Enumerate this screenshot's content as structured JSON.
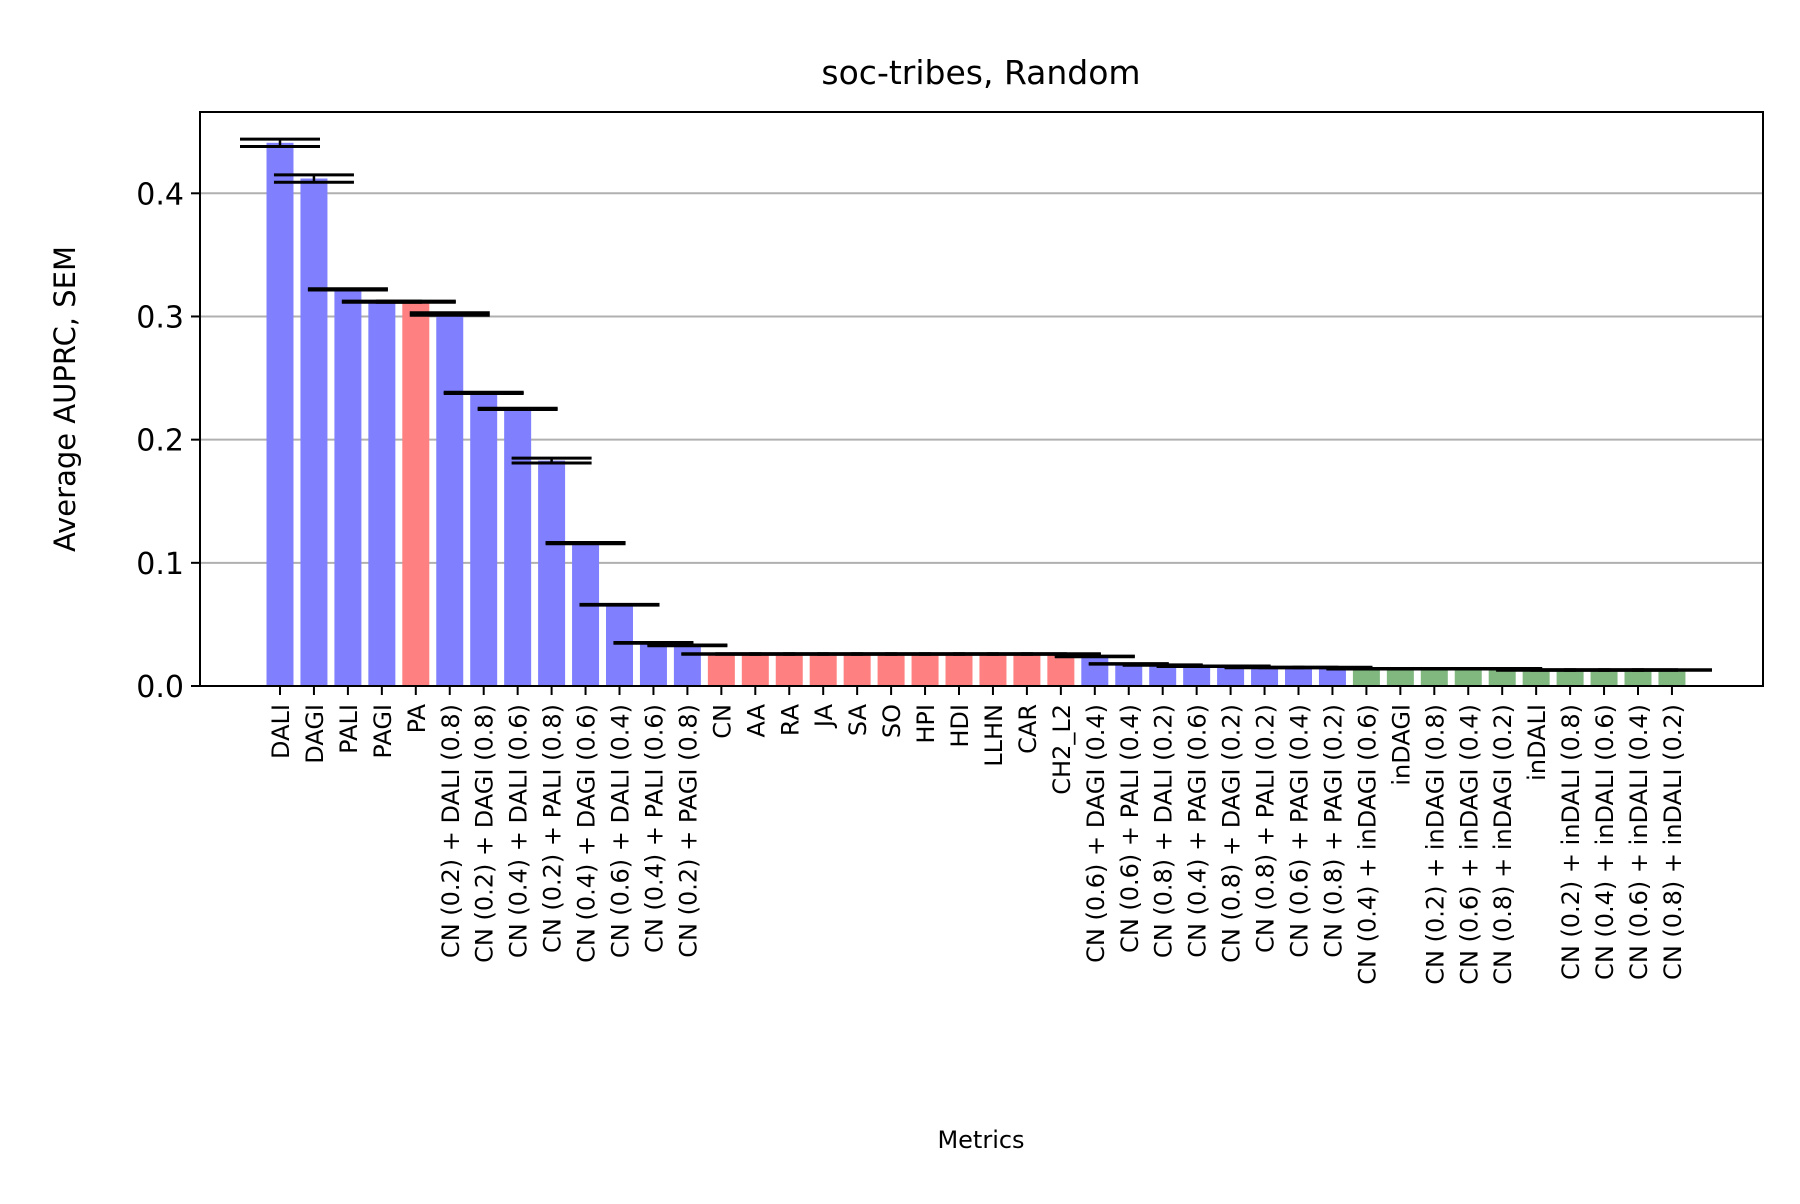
{
  "chart_data": {
    "type": "bar",
    "title": "soc-tribes, Random",
    "xlabel": "Metrics",
    "ylabel": "Average AUPRC, SEM",
    "ylim": [
      0,
      0.466
    ],
    "yticks": [
      0.0,
      0.1,
      0.2,
      0.3,
      0.4
    ],
    "ytick_labels": [
      "0.0",
      "0.1",
      "0.2",
      "0.3",
      "0.4"
    ],
    "grid": "y",
    "colors": {
      "blue": "#8080ff",
      "red": "#ff8080",
      "green": "#80b880"
    },
    "categories": [
      "DALI",
      "DAGI",
      "PALI",
      "PAGI",
      "PA",
      "CN (0.2) + DALI (0.8)",
      "CN (0.2) + DAGI (0.8)",
      "CN (0.4) + DALI (0.6)",
      "CN (0.2) + PALI (0.8)",
      "CN (0.4) + DAGI (0.6)",
      "CN (0.6) + DALI (0.4)",
      "CN (0.4) + PALI (0.6)",
      "CN (0.2) + PAGI (0.8)",
      "CN",
      "AA",
      "RA",
      "JA",
      "SA",
      "SO",
      "HPI",
      "HDI",
      "LLHN",
      "CAR",
      "CH2_L2",
      "CN (0.6) + DAGI (0.4)",
      "CN (0.6) + PALI (0.4)",
      "CN (0.8) + DALI (0.2)",
      "CN (0.4) + PAGI (0.6)",
      "CN (0.8) + DAGI (0.2)",
      "CN (0.8) + PALI (0.2)",
      "CN (0.6) + PAGI (0.4)",
      "CN (0.8) + PAGI (0.2)",
      "CN (0.4) + inDAGI (0.6)",
      "inDAGI",
      "CN (0.2) + inDAGI (0.8)",
      "CN (0.6) + inDAGI (0.4)",
      "CN (0.8) + inDAGI (0.2)",
      "inDALI",
      "CN (0.2) + inDALI (0.8)",
      "CN (0.4) + inDALI (0.6)",
      "CN (0.6) + inDALI (0.4)",
      "CN (0.8) + inDALI (0.2)"
    ],
    "values": [
      0.441,
      0.412,
      0.322,
      0.312,
      0.312,
      0.302,
      0.238,
      0.225,
      0.183,
      0.116,
      0.066,
      0.035,
      0.033,
      0.026,
      0.026,
      0.026,
      0.026,
      0.026,
      0.026,
      0.026,
      0.026,
      0.026,
      0.026,
      0.026,
      0.024,
      0.018,
      0.017,
      0.016,
      0.016,
      0.015,
      0.015,
      0.015,
      0.014,
      0.014,
      0.014,
      0.014,
      0.014,
      0.013,
      0.013,
      0.013,
      0.013,
      0.013
    ],
    "errors": [
      0.003,
      0.003,
      0.0005,
      0.0005,
      0.0005,
      0.001,
      0.0005,
      0.0005,
      0.002,
      0.0005,
      0.0003,
      0.0003,
      0.0003,
      0.0002,
      0.0002,
      0.0002,
      0.0002,
      0.0002,
      0.0002,
      0.0002,
      0.0002,
      0.0002,
      0.0002,
      0.0002,
      0.0003,
      0.0002,
      0.0002,
      0.0002,
      0.0002,
      0.0002,
      0.0002,
      0.0002,
      0.0002,
      0.0002,
      0.0002,
      0.0002,
      0.0002,
      0.0002,
      0.0002,
      0.0002,
      0.0002,
      0.0002
    ],
    "bar_colors": [
      "blue",
      "blue",
      "blue",
      "blue",
      "red",
      "blue",
      "blue",
      "blue",
      "blue",
      "blue",
      "blue",
      "blue",
      "blue",
      "red",
      "red",
      "red",
      "red",
      "red",
      "red",
      "red",
      "red",
      "red",
      "red",
      "red",
      "blue",
      "blue",
      "blue",
      "blue",
      "blue",
      "blue",
      "blue",
      "blue",
      "green",
      "green",
      "green",
      "green",
      "green",
      "green",
      "green",
      "green",
      "green",
      "green"
    ]
  }
}
